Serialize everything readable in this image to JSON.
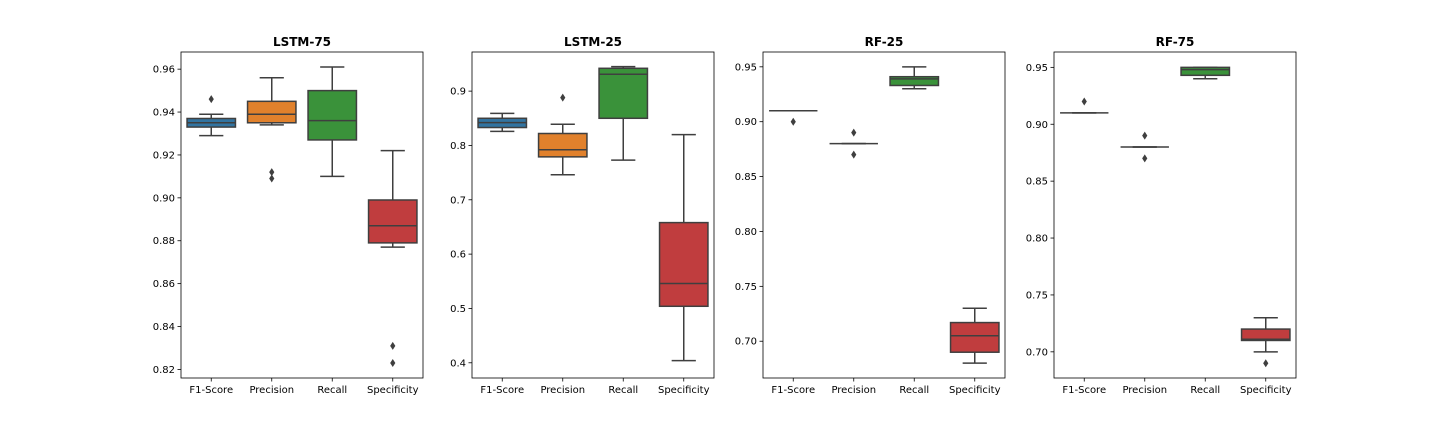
{
  "chart_data": [
    {
      "type": "box",
      "title": "LSTM-75",
      "categories": [
        "F1-Score",
        "Precision",
        "Recall",
        "Specificity"
      ],
      "ylim": [
        0.816,
        0.968
      ],
      "yticks": [
        0.82,
        0.84,
        0.86,
        0.88,
        0.9,
        0.92,
        0.94,
        0.96
      ],
      "ytick_labels": [
        "0.82",
        "0.84",
        "0.86",
        "0.88",
        "0.90",
        "0.92",
        "0.94",
        "0.96"
      ],
      "boxes": [
        {
          "whisker_low": 0.929,
          "q1": 0.933,
          "median": 0.935,
          "q3": 0.937,
          "whisker_high": 0.939,
          "outliers": [
            0.946
          ]
        },
        {
          "whisker_low": 0.934,
          "q1": 0.935,
          "median": 0.939,
          "q3": 0.945,
          "whisker_high": 0.956,
          "outliers": [
            0.909,
            0.912
          ]
        },
        {
          "whisker_low": 0.91,
          "q1": 0.927,
          "median": 0.936,
          "q3": 0.95,
          "whisker_high": 0.961,
          "outliers": []
        },
        {
          "whisker_low": 0.877,
          "q1": 0.879,
          "median": 0.887,
          "q3": 0.899,
          "whisker_high": 0.922,
          "outliers": [
            0.823,
            0.831
          ]
        }
      ]
    },
    {
      "type": "box",
      "title": "LSTM-25",
      "categories": [
        "F1-Score",
        "Precision",
        "Recall",
        "Specificity"
      ],
      "ylim": [
        0.372,
        0.972
      ],
      "yticks": [
        0.4,
        0.5,
        0.6,
        0.7,
        0.8,
        0.9
      ],
      "ytick_labels": [
        "0.4",
        "0.5",
        "0.6",
        "0.7",
        "0.8",
        "0.9"
      ],
      "boxes": [
        {
          "whisker_low": 0.826,
          "q1": 0.833,
          "median": 0.842,
          "q3": 0.85,
          "whisker_high": 0.859,
          "outliers": []
        },
        {
          "whisker_low": 0.746,
          "q1": 0.779,
          "median": 0.792,
          "q3": 0.822,
          "whisker_high": 0.839,
          "outliers": [
            0.888
          ]
        },
        {
          "whisker_low": 0.773,
          "q1": 0.85,
          "median": 0.931,
          "q3": 0.942,
          "whisker_high": 0.945,
          "outliers": []
        },
        {
          "whisker_low": 0.404,
          "q1": 0.504,
          "median": 0.546,
          "q3": 0.658,
          "whisker_high": 0.82,
          "outliers": []
        }
      ]
    },
    {
      "type": "box",
      "title": "RF-25",
      "categories": [
        "F1-Score",
        "Precision",
        "Recall",
        "Specificity"
      ],
      "ylim": [
        0.6665,
        0.9635
      ],
      "yticks": [
        0.7,
        0.75,
        0.8,
        0.85,
        0.9,
        0.95
      ],
      "ytick_labels": [
        "0.70",
        "0.75",
        "0.80",
        "0.85",
        "0.90",
        "0.95"
      ],
      "boxes": [
        {
          "whisker_low": 0.91,
          "q1": 0.91,
          "median": 0.91,
          "q3": 0.91,
          "whisker_high": 0.91,
          "outliers": [
            0.9
          ]
        },
        {
          "whisker_low": 0.88,
          "q1": 0.88,
          "median": 0.88,
          "q3": 0.88,
          "whisker_high": 0.88,
          "outliers": [
            0.87,
            0.89
          ]
        },
        {
          "whisker_low": 0.93,
          "q1": 0.933,
          "median": 0.939,
          "q3": 0.941,
          "whisker_high": 0.95,
          "outliers": []
        },
        {
          "whisker_low": 0.68,
          "q1": 0.69,
          "median": 0.705,
          "q3": 0.717,
          "whisker_high": 0.73,
          "outliers": []
        }
      ]
    },
    {
      "type": "box",
      "title": "RF-75",
      "categories": [
        "F1-Score",
        "Precision",
        "Recall",
        "Specificity"
      ],
      "ylim": [
        0.677,
        0.9635
      ],
      "yticks": [
        0.7,
        0.75,
        0.8,
        0.85,
        0.9,
        0.95
      ],
      "ytick_labels": [
        "0.70",
        "0.75",
        "0.80",
        "0.85",
        "0.90",
        "0.95"
      ],
      "boxes": [
        {
          "whisker_low": 0.91,
          "q1": 0.91,
          "median": 0.91,
          "q3": 0.91,
          "whisker_high": 0.91,
          "outliers": [
            0.92
          ]
        },
        {
          "whisker_low": 0.88,
          "q1": 0.88,
          "median": 0.88,
          "q3": 0.88,
          "whisker_high": 0.88,
          "outliers": [
            0.87,
            0.89
          ]
        },
        {
          "whisker_low": 0.94,
          "q1": 0.943,
          "median": 0.948,
          "q3": 0.95,
          "whisker_high": 0.95,
          "outliers": []
        },
        {
          "whisker_low": 0.7,
          "q1": 0.71,
          "median": 0.711,
          "q3": 0.72,
          "whisker_high": 0.73,
          "outliers": [
            0.69
          ]
        }
      ]
    }
  ],
  "colors": {
    "F1-Score": "#3274a1",
    "Precision": "#e1812c",
    "Recall": "#3a923a",
    "Specificity": "#c03d3e",
    "outline": "#3f3f3f",
    "axis": "#000000"
  }
}
